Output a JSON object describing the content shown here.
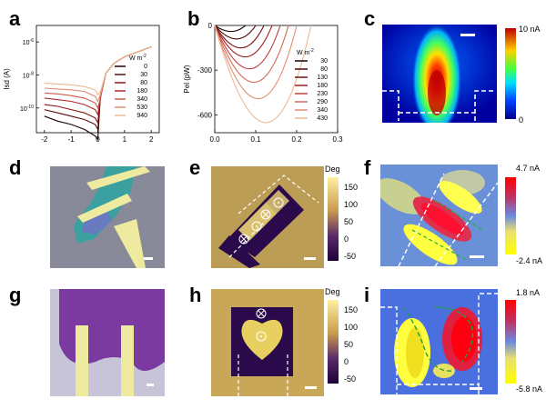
{
  "panels": {
    "a": "a",
    "b": "b",
    "c": "c",
    "d": "d",
    "e": "e",
    "f": "f",
    "g": "g",
    "h": "h",
    "i": "i"
  },
  "chart_data": [
    {
      "id": "a",
      "type": "line",
      "xlabel": "V_sd (V)",
      "ylabel": "I_sd (A)",
      "xlim": [
        -2.3,
        2.3
      ],
      "ylim_log10": [
        -11.5,
        -5
      ],
      "x_ticks": [
        -2,
        -1,
        0,
        1,
        2
      ],
      "y_ticks": [
        {
          "log": -6,
          "label": "10^-6"
        },
        {
          "log": -8,
          "label": "10^-8"
        },
        {
          "log": -10,
          "label": "10^-10"
        }
      ],
      "legend_title": "W m^-2",
      "series": [
        {
          "name": "0",
          "color": "#1a0000",
          "values": [
            [
              -2,
              -10.5
            ],
            [
              -1.5,
              -10.8
            ],
            [
              -1,
              -11.0
            ],
            [
              -0.5,
              -11.3
            ],
            [
              -0.1,
              -11.7
            ],
            [
              0,
              -11.9
            ],
            [
              0.1,
              -9.2
            ],
            [
              0.3,
              -7.9
            ],
            [
              0.6,
              -7.3
            ],
            [
              1,
              -6.9
            ],
            [
              1.5,
              -6.6
            ],
            [
              2,
              -6.3
            ]
          ]
        },
        {
          "name": "30",
          "color": "#5a0a0a",
          "values": [
            [
              -2,
              -10.1
            ],
            [
              -1.5,
              -10.3
            ],
            [
              -1,
              -10.5
            ],
            [
              -0.5,
              -10.7
            ],
            [
              -0.1,
              -11.0
            ],
            [
              0,
              -11.3
            ],
            [
              0.1,
              -9.3
            ],
            [
              0.3,
              -7.9
            ],
            [
              0.6,
              -7.3
            ],
            [
              1,
              -6.9
            ],
            [
              1.5,
              -6.6
            ],
            [
              2,
              -6.3
            ]
          ]
        },
        {
          "name": "80",
          "color": "#8c1414",
          "values": [
            [
              -2,
              -9.8
            ],
            [
              -1.5,
              -9.9
            ],
            [
              -1,
              -10.1
            ],
            [
              -0.5,
              -10.3
            ],
            [
              -0.1,
              -10.6
            ],
            [
              0,
              -10.9
            ],
            [
              0.1,
              -9.3
            ],
            [
              0.3,
              -7.9
            ],
            [
              0.6,
              -7.3
            ],
            [
              1,
              -6.9
            ],
            [
              1.5,
              -6.6
            ],
            [
              2,
              -6.3
            ]
          ]
        },
        {
          "name": "180",
          "color": "#b22a2a",
          "values": [
            [
              -2,
              -9.4
            ],
            [
              -1.5,
              -9.5
            ],
            [
              -1,
              -9.6
            ],
            [
              -0.5,
              -9.8
            ],
            [
              -0.1,
              -10.1
            ],
            [
              0,
              -10.4
            ],
            [
              0.1,
              -9.4
            ],
            [
              0.3,
              -7.9
            ],
            [
              0.6,
              -7.3
            ],
            [
              1,
              -6.9
            ],
            [
              1.5,
              -6.6
            ],
            [
              2,
              -6.3
            ]
          ]
        },
        {
          "name": "340",
          "color": "#cc5a4a",
          "values": [
            [
              -2,
              -9.1
            ],
            [
              -1.5,
              -9.15
            ],
            [
              -1,
              -9.25
            ],
            [
              -0.5,
              -9.4
            ],
            [
              -0.1,
              -9.7
            ],
            [
              0,
              -10.0
            ],
            [
              0.1,
              -9.4
            ],
            [
              0.3,
              -7.9
            ],
            [
              0.6,
              -7.3
            ],
            [
              1,
              -6.9
            ],
            [
              1.5,
              -6.6
            ],
            [
              2,
              -6.3
            ]
          ]
        },
        {
          "name": "530",
          "color": "#e08c70",
          "values": [
            [
              -2,
              -8.8
            ],
            [
              -1.5,
              -8.85
            ],
            [
              -1,
              -8.9
            ],
            [
              -0.5,
              -9.0
            ],
            [
              -0.1,
              -9.3
            ],
            [
              0,
              -9.6
            ],
            [
              0.1,
              -9.2
            ],
            [
              0.3,
              -7.9
            ],
            [
              0.6,
              -7.3
            ],
            [
              1,
              -6.9
            ],
            [
              1.5,
              -6.6
            ],
            [
              2,
              -6.3
            ]
          ]
        },
        {
          "name": "940",
          "color": "#f0b88e",
          "values": [
            [
              -2,
              -8.5
            ],
            [
              -1.5,
              -8.55
            ],
            [
              -1,
              -8.6
            ],
            [
              -0.5,
              -8.7
            ],
            [
              -0.1,
              -8.9
            ],
            [
              0,
              -9.2
            ],
            [
              0.1,
              -9.0
            ],
            [
              0.3,
              -7.9
            ],
            [
              0.6,
              -7.3
            ],
            [
              1,
              -6.9
            ],
            [
              1.5,
              -6.6
            ],
            [
              2,
              -6.3
            ]
          ]
        }
      ]
    },
    {
      "id": "b",
      "type": "line",
      "xlabel": "V_sd (V)",
      "ylabel": "P_el (pW)",
      "xlim": [
        0,
        0.3
      ],
      "ylim": [
        -720,
        0
      ],
      "x_ticks": [
        0.0,
        0.1,
        0.2,
        0.3
      ],
      "y_ticks": [
        0,
        -300,
        -600
      ],
      "legend_title": "W m^-2",
      "series": [
        {
          "name": "30",
          "color": "#1a0000",
          "voc": 0.075,
          "pmin": -40
        },
        {
          "name": "80",
          "color": "#4a0808",
          "voc": 0.1,
          "pmin": -90
        },
        {
          "name": "130",
          "color": "#7a1010",
          "voc": 0.12,
          "pmin": -150
        },
        {
          "name": "180",
          "color": "#a01c1c",
          "voc": 0.14,
          "pmin": -210
        },
        {
          "name": "230",
          "color": "#c04040",
          "voc": 0.16,
          "pmin": -290
        },
        {
          "name": "290",
          "color": "#d06a55",
          "voc": 0.18,
          "pmin": -380
        },
        {
          "name": "340",
          "color": "#e09070",
          "voc": 0.2,
          "pmin": -490
        },
        {
          "name": "430",
          "color": "#f0b890",
          "voc": 0.235,
          "pmin": -650
        }
      ]
    }
  ],
  "colorbars": {
    "c": {
      "max": "10 nA",
      "min": "0"
    },
    "e": {
      "title": "Deg",
      "ticks": [
        "150",
        "100",
        "50",
        "0",
        "-50"
      ]
    },
    "f": {
      "max": "4.7 nA",
      "min": "-2.4 nA"
    },
    "h": {
      "title": "Deg",
      "ticks": [
        "150",
        "100",
        "50",
        "0",
        "-50"
      ]
    },
    "i": {
      "max": "1.8 nA",
      "min": "-5.8 nA"
    }
  },
  "colors": {
    "jet_low": "#00008b",
    "jet_mid": "#00ff00",
    "jet_high": "#ff0000",
    "phase_dark": "#2a0a4a",
    "phase_light": "#f4e8a0",
    "optical_purple": "#6a5aa8",
    "electrode": "#f4f0a0"
  }
}
